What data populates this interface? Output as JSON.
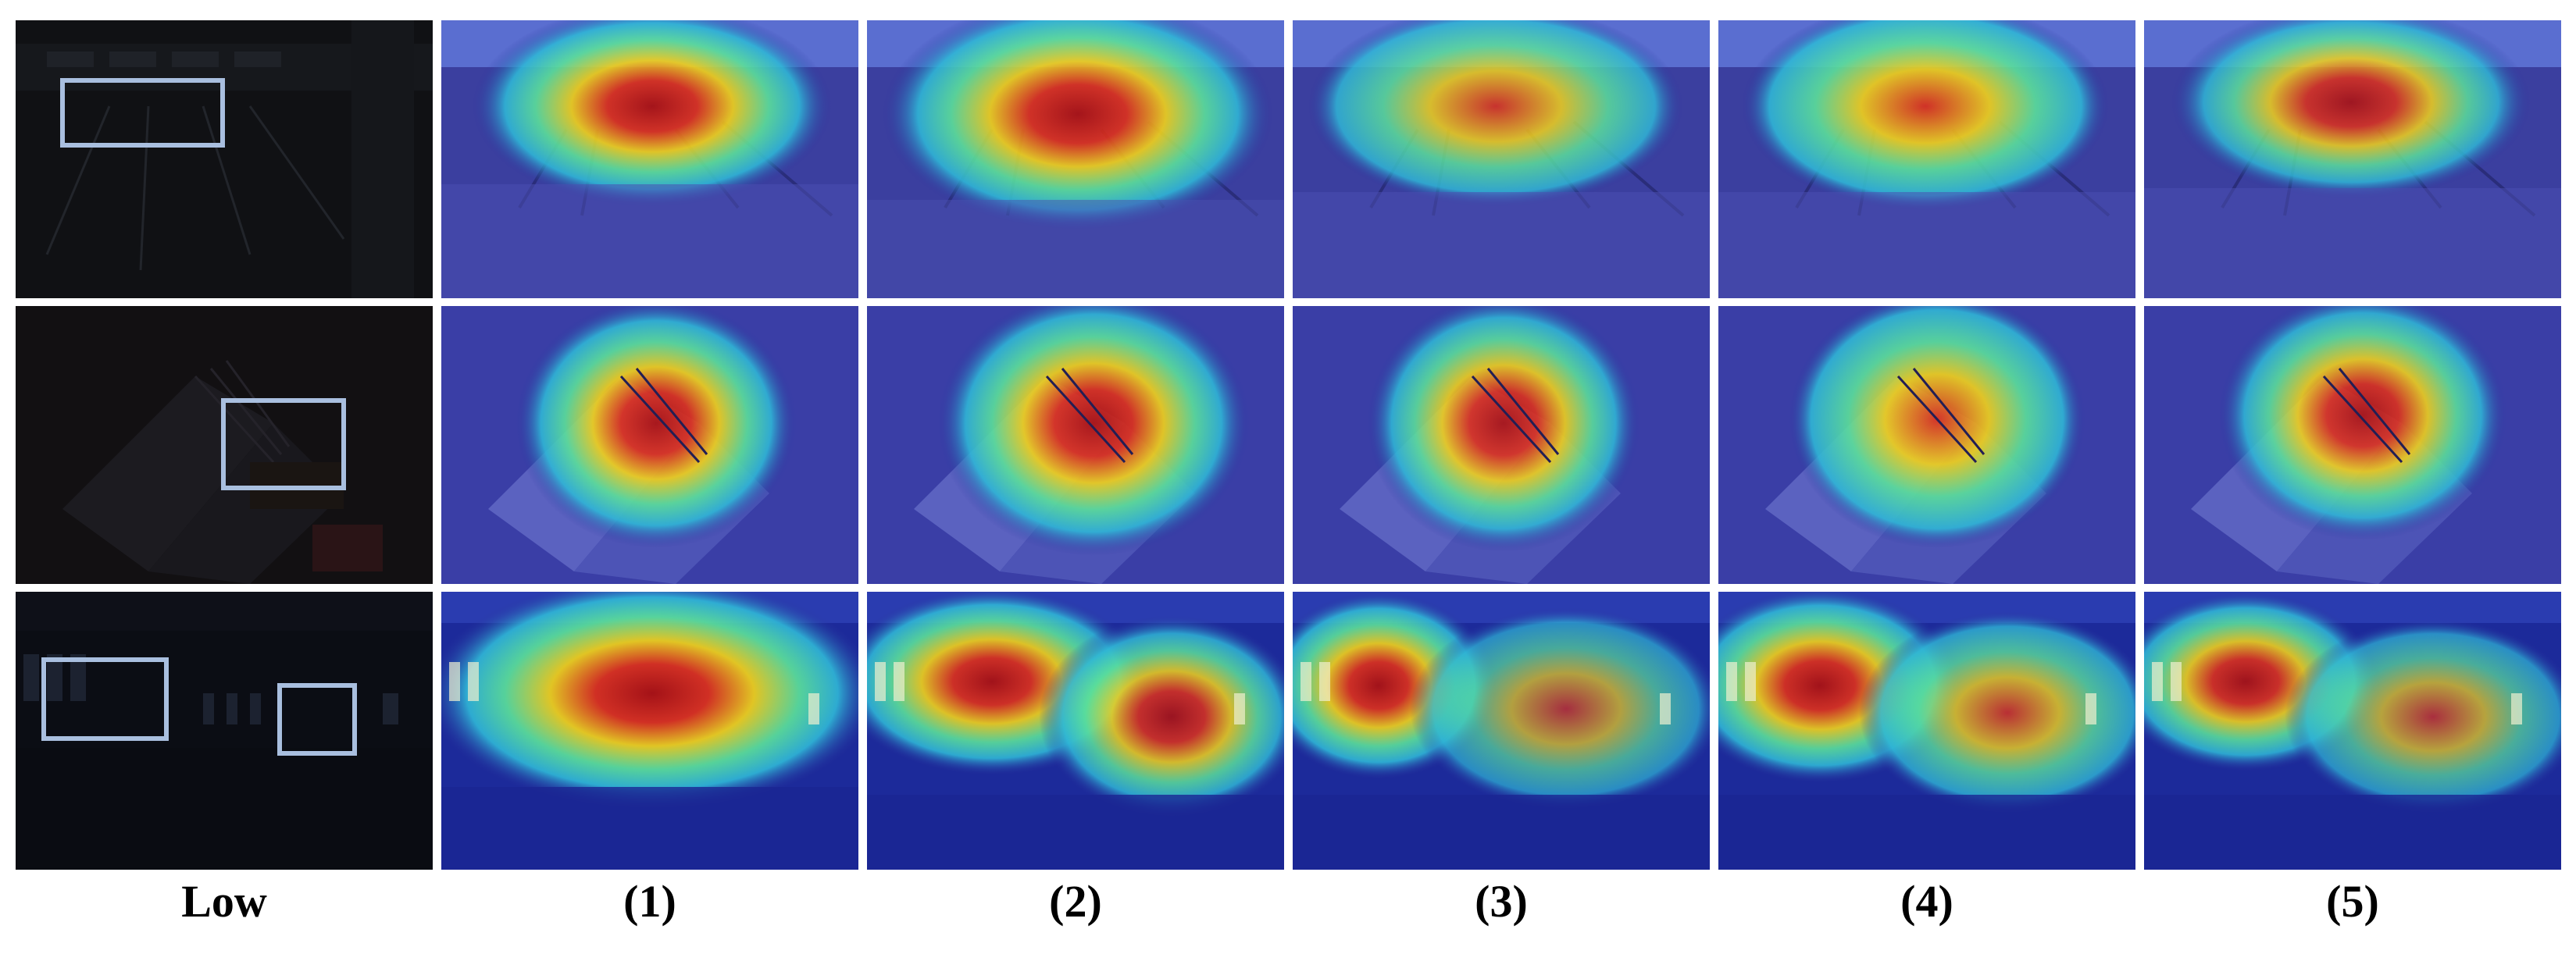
{
  "column_labels": [
    "Low",
    "(1)",
    "(2)",
    "(3)",
    "(4)",
    "(5)"
  ],
  "rows": [
    {
      "scene": "bowling alley",
      "dark_color": "#0e0f12",
      "heat_base": "#23248f"
    },
    {
      "scene": "open book with stapler",
      "dark_color": "#121012",
      "heat_base": "#2a2c9a"
    },
    {
      "scene": "indoor hall with windows",
      "dark_color": "#0b0d14",
      "heat_base": "#1a2b9a"
    }
  ],
  "colors": {
    "box_outline": "#a9bfdf",
    "heat_hot": "#d81a10",
    "heat_warm": "#f2d21a",
    "heat_mid": "#2fd0c8",
    "heat_cold": "#1c2896"
  }
}
